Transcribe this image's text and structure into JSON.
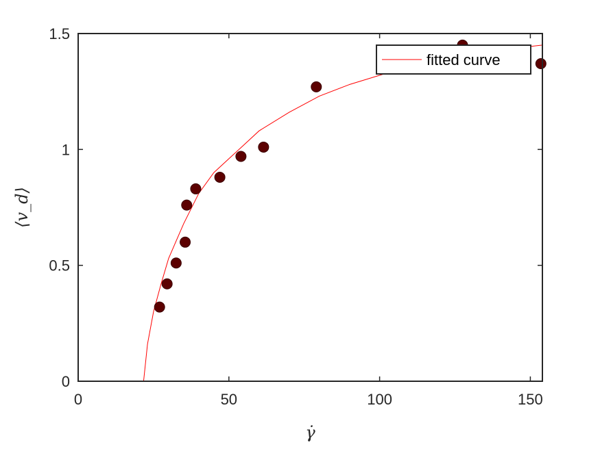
{
  "chart_data": {
    "type": "scatter",
    "xlabel": "γ̇",
    "ylabel": "⟨v_d⟩",
    "xlim": [
      0,
      154
    ],
    "ylim": [
      0,
      1.5
    ],
    "x_ticks": [
      "0",
      "50",
      "100",
      "150"
    ],
    "y_ticks": [
      "0",
      "0.5",
      "1",
      "1.5"
    ],
    "grid": false,
    "legend_position": "top-right",
    "series": [
      {
        "type": "scatter",
        "color": "#5c0000",
        "points": [
          {
            "x": 27,
            "y": 0.32
          },
          {
            "x": 29.5,
            "y": 0.42
          },
          {
            "x": 32.5,
            "y": 0.51
          },
          {
            "x": 35.5,
            "y": 0.6
          },
          {
            "x": 36,
            "y": 0.76
          },
          {
            "x": 39,
            "y": 0.83
          },
          {
            "x": 47,
            "y": 0.88
          },
          {
            "x": 54,
            "y": 0.97
          },
          {
            "x": 61.5,
            "y": 1.01
          },
          {
            "x": 79,
            "y": 1.27
          },
          {
            "x": 127.5,
            "y": 1.45
          },
          {
            "x": 153.5,
            "y": 1.37
          }
        ]
      },
      {
        "type": "line",
        "name": "fitted curve",
        "color": "#ff0000",
        "points": [
          {
            "x": 21.7,
            "y": 0.0
          },
          {
            "x": 23,
            "y": 0.16
          },
          {
            "x": 25,
            "y": 0.3
          },
          {
            "x": 27.5,
            "y": 0.42
          },
          {
            "x": 30,
            "y": 0.53
          },
          {
            "x": 35,
            "y": 0.68
          },
          {
            "x": 40,
            "y": 0.81
          },
          {
            "x": 45,
            "y": 0.9
          },
          {
            "x": 50,
            "y": 0.96
          },
          {
            "x": 55,
            "y": 1.02
          },
          {
            "x": 60,
            "y": 1.08
          },
          {
            "x": 70,
            "y": 1.16
          },
          {
            "x": 80,
            "y": 1.23
          },
          {
            "x": 90,
            "y": 1.28
          },
          {
            "x": 100,
            "y": 1.32
          },
          {
            "x": 110,
            "y": 1.36
          },
          {
            "x": 120,
            "y": 1.39
          },
          {
            "x": 130,
            "y": 1.41
          },
          {
            "x": 140,
            "y": 1.43
          },
          {
            "x": 154,
            "y": 1.45
          }
        ]
      }
    ]
  }
}
